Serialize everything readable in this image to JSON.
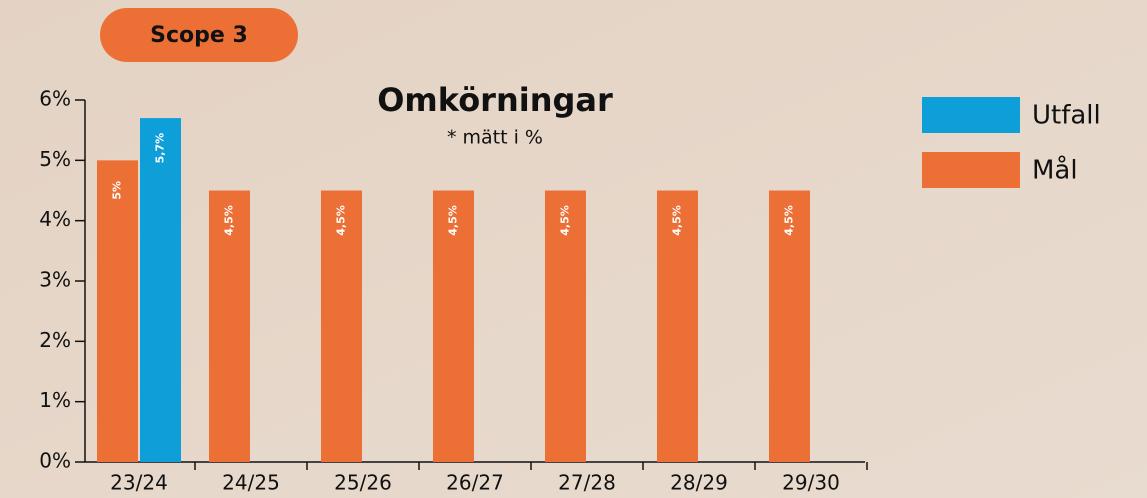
{
  "chart_data": {
    "type": "bar",
    "badge": "Scope 3",
    "title": "Omkörningar",
    "subtitle": "* mätt i %",
    "categories": [
      "23/24",
      "24/25",
      "25/26",
      "26/27",
      "27/28",
      "28/29",
      "29/30"
    ],
    "series": [
      {
        "name": "Mål",
        "color": "#ec7035",
        "values": [
          5,
          4.5,
          4.5,
          4.5,
          4.5,
          4.5,
          4.5
        ],
        "value_labels": [
          "5%",
          "4,5%",
          "4,5%",
          "4,5%",
          "4,5%",
          "4,5%",
          "4,5%"
        ]
      },
      {
        "name": "Utfall",
        "color": "#0f9fd8",
        "values": [
          5.7,
          null,
          null,
          null,
          null,
          null,
          null
        ],
        "value_labels": [
          "5,7%",
          null,
          null,
          null,
          null,
          null,
          null
        ]
      }
    ],
    "legend_order": [
      "Utfall",
      "Mål"
    ],
    "ylim": [
      0,
      6
    ],
    "yticks": [
      {
        "value": 0,
        "label": "0%"
      },
      {
        "value": 1,
        "label": "1%"
      },
      {
        "value": 2,
        "label": "2%"
      },
      {
        "value": 3,
        "label": "3%"
      },
      {
        "value": 4,
        "label": "4%"
      },
      {
        "value": 5,
        "label": "5%"
      },
      {
        "value": 6,
        "label": "6%"
      }
    ],
    "legend": "right"
  }
}
